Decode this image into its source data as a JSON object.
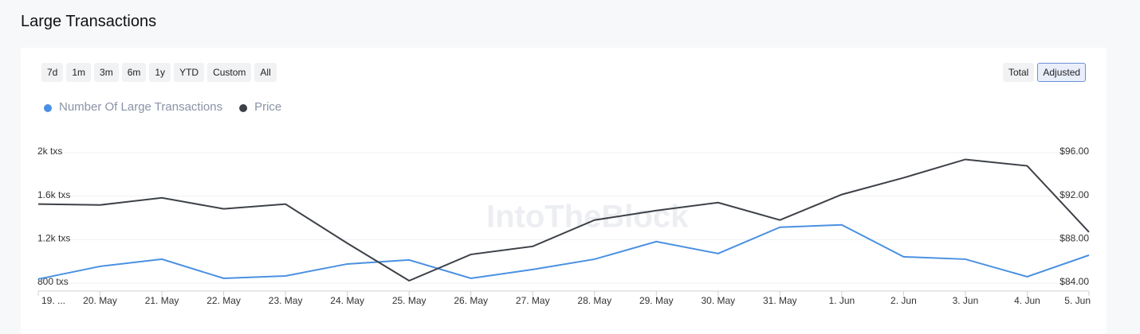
{
  "header": {
    "title": "Large Transactions"
  },
  "toolbar": {
    "ranges": [
      "7d",
      "1m",
      "3m",
      "6m",
      "1y",
      "YTD",
      "Custom",
      "All"
    ],
    "modes": [
      "Total",
      "Adjusted"
    ],
    "active_mode": 1
  },
  "watermark": "IntoTheBlock",
  "chart_data": {
    "type": "line",
    "categories": [
      "19. ...",
      "20. May",
      "21. May",
      "22. May",
      "23. May",
      "24. May",
      "25. May",
      "26. May",
      "27. May",
      "28. May",
      "29. May",
      "30. May",
      "31. May",
      "1. Jun",
      "2. Jun",
      "3. Jun",
      "4. Jun",
      "5. Jun"
    ],
    "series": [
      {
        "name": "Number Of Large Transactions",
        "color": "#4a90e2",
        "axis": "y",
        "values": [
          837,
          954,
          1020,
          844,
          866,
          976,
          1013,
          844,
          925,
          1020,
          1182,
          1072,
          1314,
          1336,
          1042,
          1020,
          859,
          1057
        ]
      },
      {
        "name": "Price",
        "color": "#3d4147",
        "axis": "y2",
        "values": [
          91.27,
          91.19,
          91.85,
          90.83,
          91.27,
          87.67,
          84.22,
          86.64,
          87.38,
          89.8,
          90.68,
          91.41,
          89.8,
          92.15,
          93.69,
          95.38,
          94.79,
          88.7
        ]
      }
    ],
    "ylim": [
      800,
      2000
    ],
    "yticks": [
      {
        "value": 800,
        "label": "800 txs"
      },
      {
        "value": 1200,
        "label": "1.2k txs"
      },
      {
        "value": 1600,
        "label": "1.6k txs"
      },
      {
        "value": 2000,
        "label": "2k txs"
      }
    ],
    "y2lim": [
      84,
      96
    ],
    "y2ticks": [
      {
        "value": 84,
        "label": "$84.00"
      },
      {
        "value": 88,
        "label": "$88.00"
      },
      {
        "value": 92,
        "label": "$92.00"
      },
      {
        "value": 96,
        "label": "$96.00"
      }
    ],
    "grid": true
  }
}
